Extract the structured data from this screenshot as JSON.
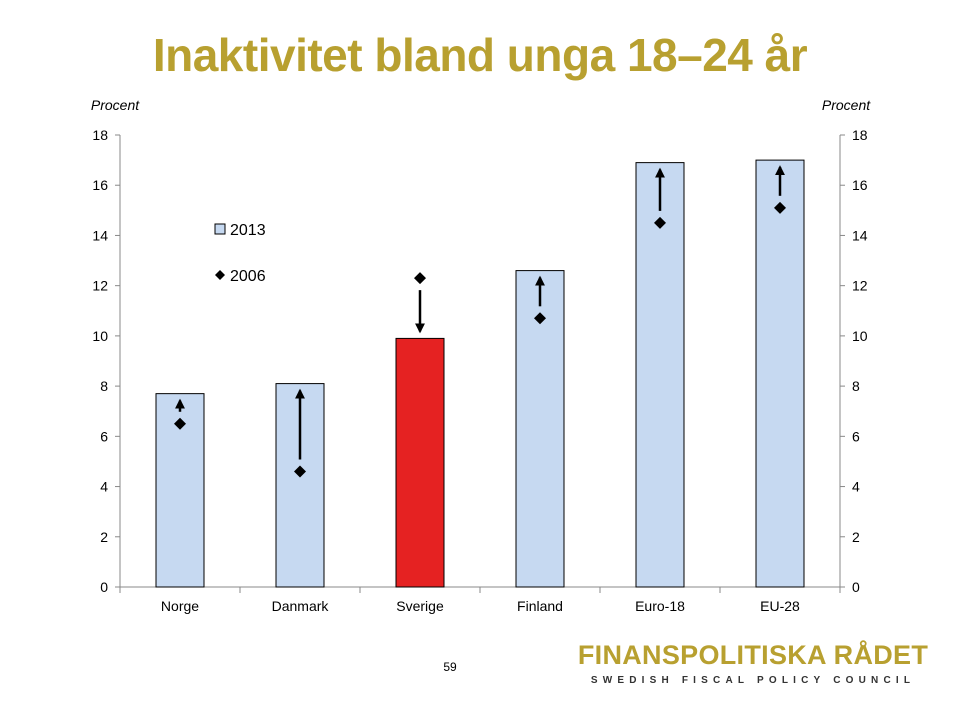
{
  "title": "Inaktivitet bland unga 18–24 år",
  "page_number": "59",
  "logo": {
    "name": "FINANSPOLITISKA RÅDET",
    "subtitle": "SWEDISH FISCAL POLICY COUNCIL"
  },
  "colors": {
    "title": "#b8a030",
    "bar": "#c6d9f1",
    "bar_highlight": "#e52222",
    "marker": "#000000"
  },
  "chart_data": {
    "type": "bar",
    "categories": [
      "Norge",
      "Danmark",
      "Sverige",
      "Finland",
      "Euro-18",
      "EU-28"
    ],
    "highlight_category": "Sverige",
    "series": [
      {
        "name": "2013",
        "type": "bar",
        "values": [
          7.7,
          8.1,
          9.9,
          12.6,
          16.9,
          17.0
        ]
      },
      {
        "name": "2006",
        "type": "marker-diamond",
        "values": [
          6.5,
          4.6,
          12.3,
          10.7,
          14.5,
          15.1
        ]
      }
    ],
    "annotations": "arrows from 2006 marker toward 2013 bar top",
    "ylabel_left": "Procent",
    "ylabel_right": "Procent",
    "ylim": [
      0,
      18
    ],
    "yticks": [
      0,
      2,
      4,
      6,
      8,
      10,
      12,
      14,
      16,
      18
    ],
    "legend_placement": "upper-left inside plot",
    "grid": false
  }
}
